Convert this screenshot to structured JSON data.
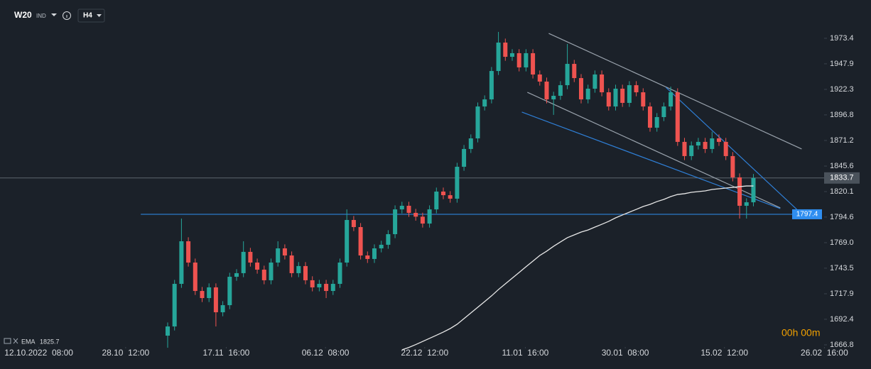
{
  "header": {
    "symbol": "W20",
    "market": "IND",
    "timeframe": "H4"
  },
  "timer": "00h 00m",
  "chart_data": {
    "type": "candlestick",
    "xlim": [
      -24.33,
      95.26
    ],
    "xticks": [
      {
        "value": -18.7,
        "label": "12.10.2022  08:00"
      },
      {
        "value": -6.1,
        "label": "28.10  12:00"
      },
      {
        "value": 8.5,
        "label": "17.11  16:00"
      },
      {
        "value": 22.9,
        "label": "06.12  08:00"
      },
      {
        "value": 37.3,
        "label": "22.12  12:00"
      },
      {
        "value": 51.9,
        "label": "11.01  16:00"
      },
      {
        "value": 66.4,
        "label": "30.01  08:00"
      },
      {
        "value": 80.8,
        "label": "15.02  12:00"
      },
      {
        "value": 95.3,
        "label": "26.02  16:00"
      }
    ],
    "ylim": [
      1646.2,
      2011.7
    ],
    "yticks": [
      1973.4,
      1947.9,
      1922.3,
      1896.8,
      1871.2,
      1845.6,
      1820.1,
      1794.6,
      {
        "value": 1769,
        "label": "1769.0"
      },
      1743.5,
      1717.9,
      1692.4,
      1666.8
    ],
    "grid": false,
    "up_color": "#26a69a",
    "down_color": "#ef5350",
    "open": [
      1676.0,
      1685.2,
      1727.8,
      1770.4,
      1749.1,
      1720.7,
      1713.6,
      1724.3,
      1699.4,
      1706.5,
      1734.9,
      1738.5,
      1759.8,
      1749.1,
      1742.0,
      1731.4,
      1749.1,
      1763.3,
      1756.2,
      1738.5,
      1745.6,
      1731.4,
      1724.3,
      1727.8,
      1720.7,
      1727.8,
      1749.1,
      1791.7,
      1784.6,
      1756.2,
      1752.7,
      1763.3,
      1766.9,
      1777.5,
      1802.3,
      1805.9,
      1798.8,
      1795.0,
      1788.1,
      1802.3,
      1820.1,
      1816.5,
      1813.0,
      1844.9,
      1862.7,
      1873.3,
      1905.2,
      1912.3,
      1940.7,
      1969.1,
      1954.9,
      1958.5,
      1944.3,
      1958.5,
      1937.2,
      1930.1,
      1912.3,
      1915.9,
      1926.5,
      1947.8,
      1933.6,
      1912.3,
      1923.0,
      1937.2,
      1919.4,
      1905.2,
      1923.0,
      1908.8,
      1926.5,
      1919.4,
      1905.2,
      1884.0,
      1894.6,
      1905.2,
      1919.4,
      1869.8,
      1855.6,
      1866.2,
      1869.8,
      1862.7,
      1873.3,
      1869.8,
      1855.6,
      1834.3,
      1805.9,
      1809.4
    ],
    "high": [
      1689.2,
      1731.8,
      1793.1,
      1774.4,
      1753.1,
      1724.7,
      1728.3,
      1728.3,
      1710.5,
      1738.9,
      1742.5,
      1770.4,
      1763.8,
      1753.1,
      1746.0,
      1753.1,
      1770.4,
      1767.3,
      1760.2,
      1749.6,
      1749.6,
      1735.4,
      1731.8,
      1731.8,
      1731.8,
      1753.1,
      1802.3,
      1795.7,
      1788.6,
      1760.2,
      1767.3,
      1770.9,
      1781.5,
      1806.3,
      1809.9,
      1809.9,
      1802.8,
      1799.0,
      1806.3,
      1824.1,
      1824.1,
      1820.5,
      1848.9,
      1866.7,
      1877.3,
      1909.2,
      1916.3,
      1944.7,
      1979.8,
      1973.1,
      1962.5,
      1962.5,
      1962.5,
      1962.5,
      1941.2,
      1934.1,
      1919.9,
      1930.5,
      1967.7,
      1951.8,
      1937.6,
      1927.0,
      1941.2,
      1941.2,
      1923.4,
      1927.0,
      1927.0,
      1930.5,
      1930.5,
      1923.4,
      1909.2,
      1898.6,
      1909.2,
      1925.1,
      1923.4,
      1873.8,
      1870.2,
      1873.8,
      1873.8,
      1880.0,
      1877.3,
      1873.8,
      1859.6,
      1838.3,
      1813.4,
      1837.7
    ],
    "low": [
      1663.9,
      1681.2,
      1723.8,
      1745.1,
      1716.7,
      1709.6,
      1709.6,
      1685.2,
      1695.4,
      1702.5,
      1730.9,
      1734.5,
      1745.1,
      1738.0,
      1727.4,
      1727.4,
      1745.1,
      1752.2,
      1734.5,
      1734.5,
      1727.4,
      1720.3,
      1720.3,
      1713.6,
      1716.7,
      1723.8,
      1745.1,
      1780.6,
      1752.2,
      1748.7,
      1748.7,
      1759.3,
      1762.9,
      1773.5,
      1798.3,
      1794.8,
      1791.0,
      1784.1,
      1784.1,
      1798.3,
      1812.5,
      1809.0,
      1809.0,
      1840.9,
      1858.7,
      1869.3,
      1901.2,
      1908.3,
      1936.7,
      1950.9,
      1950.9,
      1940.3,
      1940.3,
      1933.2,
      1926.1,
      1908.3,
      1896.8,
      1911.9,
      1922.5,
      1929.6,
      1908.3,
      1908.3,
      1919.0,
      1915.4,
      1901.2,
      1901.2,
      1904.8,
      1904.8,
      1915.4,
      1901.2,
      1880.0,
      1880.0,
      1890.6,
      1901.2,
      1865.8,
      1851.6,
      1851.6,
      1862.2,
      1858.7,
      1858.7,
      1865.8,
      1851.6,
      1830.3,
      1793.1,
      1793.1,
      1805.4
    ],
    "close": [
      1685.2,
      1727.8,
      1770.4,
      1749.1,
      1720.7,
      1713.6,
      1724.3,
      1699.4,
      1706.5,
      1734.9,
      1738.5,
      1759.8,
      1749.1,
      1742.0,
      1731.4,
      1749.1,
      1763.3,
      1756.2,
      1738.5,
      1745.6,
      1731.4,
      1724.3,
      1727.8,
      1720.7,
      1727.8,
      1749.1,
      1791.7,
      1784.6,
      1756.2,
      1752.7,
      1763.3,
      1766.9,
      1777.5,
      1802.3,
      1805.9,
      1798.8,
      1795.0,
      1788.1,
      1802.3,
      1820.1,
      1816.5,
      1813.0,
      1844.9,
      1862.7,
      1873.3,
      1905.2,
      1912.3,
      1940.7,
      1969.1,
      1954.9,
      1958.5,
      1944.3,
      1958.5,
      1937.2,
      1930.1,
      1912.3,
      1915.9,
      1926.5,
      1947.8,
      1933.6,
      1912.3,
      1923.0,
      1937.2,
      1919.4,
      1905.2,
      1923.0,
      1908.8,
      1926.5,
      1919.4,
      1905.2,
      1884.0,
      1894.6,
      1905.2,
      1919.4,
      1869.8,
      1855.6,
      1866.2,
      1869.8,
      1862.7,
      1873.3,
      1869.8,
      1855.6,
      1834.3,
      1805.9,
      1809.4,
      1833.7
    ],
    "ema": {
      "name": "EMA",
      "color": "#e8e8e8",
      "values": [
        null,
        null,
        null,
        null,
        null,
        null,
        null,
        null,
        null,
        null,
        null,
        null,
        null,
        null,
        null,
        null,
        null,
        null,
        null,
        null,
        null,
        null,
        null,
        null,
        null,
        null,
        null,
        null,
        null,
        null,
        null,
        null,
        null,
        null,
        1661.8,
        1664.2,
        1667.1,
        1670.2,
        1673.3,
        1676.4,
        1679.6,
        1683.1,
        1687.4,
        1693.0,
        1698.7,
        1704.4,
        1710.1,
        1715.8,
        1722.1,
        1727.8,
        1733.5,
        1739.2,
        1744.9,
        1750.5,
        1756.2,
        1760.5,
        1765.4,
        1769.7,
        1774.0,
        1776.8,
        1779.6,
        1781.7,
        1784.6,
        1787.4,
        1790.3,
        1793.8,
        1796.7,
        1799.5,
        1802.3,
        1805.2,
        1807.3,
        1810.1,
        1812.3,
        1815.1,
        1817.2,
        1818.0,
        1819.4,
        1820.1,
        1820.8,
        1822.2,
        1822.9,
        1823.6,
        1824.3,
        1825.0,
        1825.7,
        1825.7
      ]
    },
    "trendlines": [
      {
        "x": [
          55.3,
          92.0
        ],
        "y": [
          1978.3,
          1862.7
        ],
        "color": "#9aa3ad"
      },
      {
        "x": [
          52.2,
          88.9
        ],
        "y": [
          1919.4,
          1803.8
        ],
        "color": "#9aa3ad"
      },
      {
        "x": [
          51.4,
          88.9
        ],
        "y": [
          1899.6,
          1803.1
        ],
        "color": "#2f7fd6"
      },
      {
        "x": [
          72.3,
          91.3
        ],
        "y": [
          1924.4,
          1802.3
        ],
        "color": "#2f7fd6"
      }
    ],
    "price_levels": [
      {
        "value": 1797.4,
        "x_start": -3.9,
        "color": "#2f8ef0"
      }
    ]
  }
}
